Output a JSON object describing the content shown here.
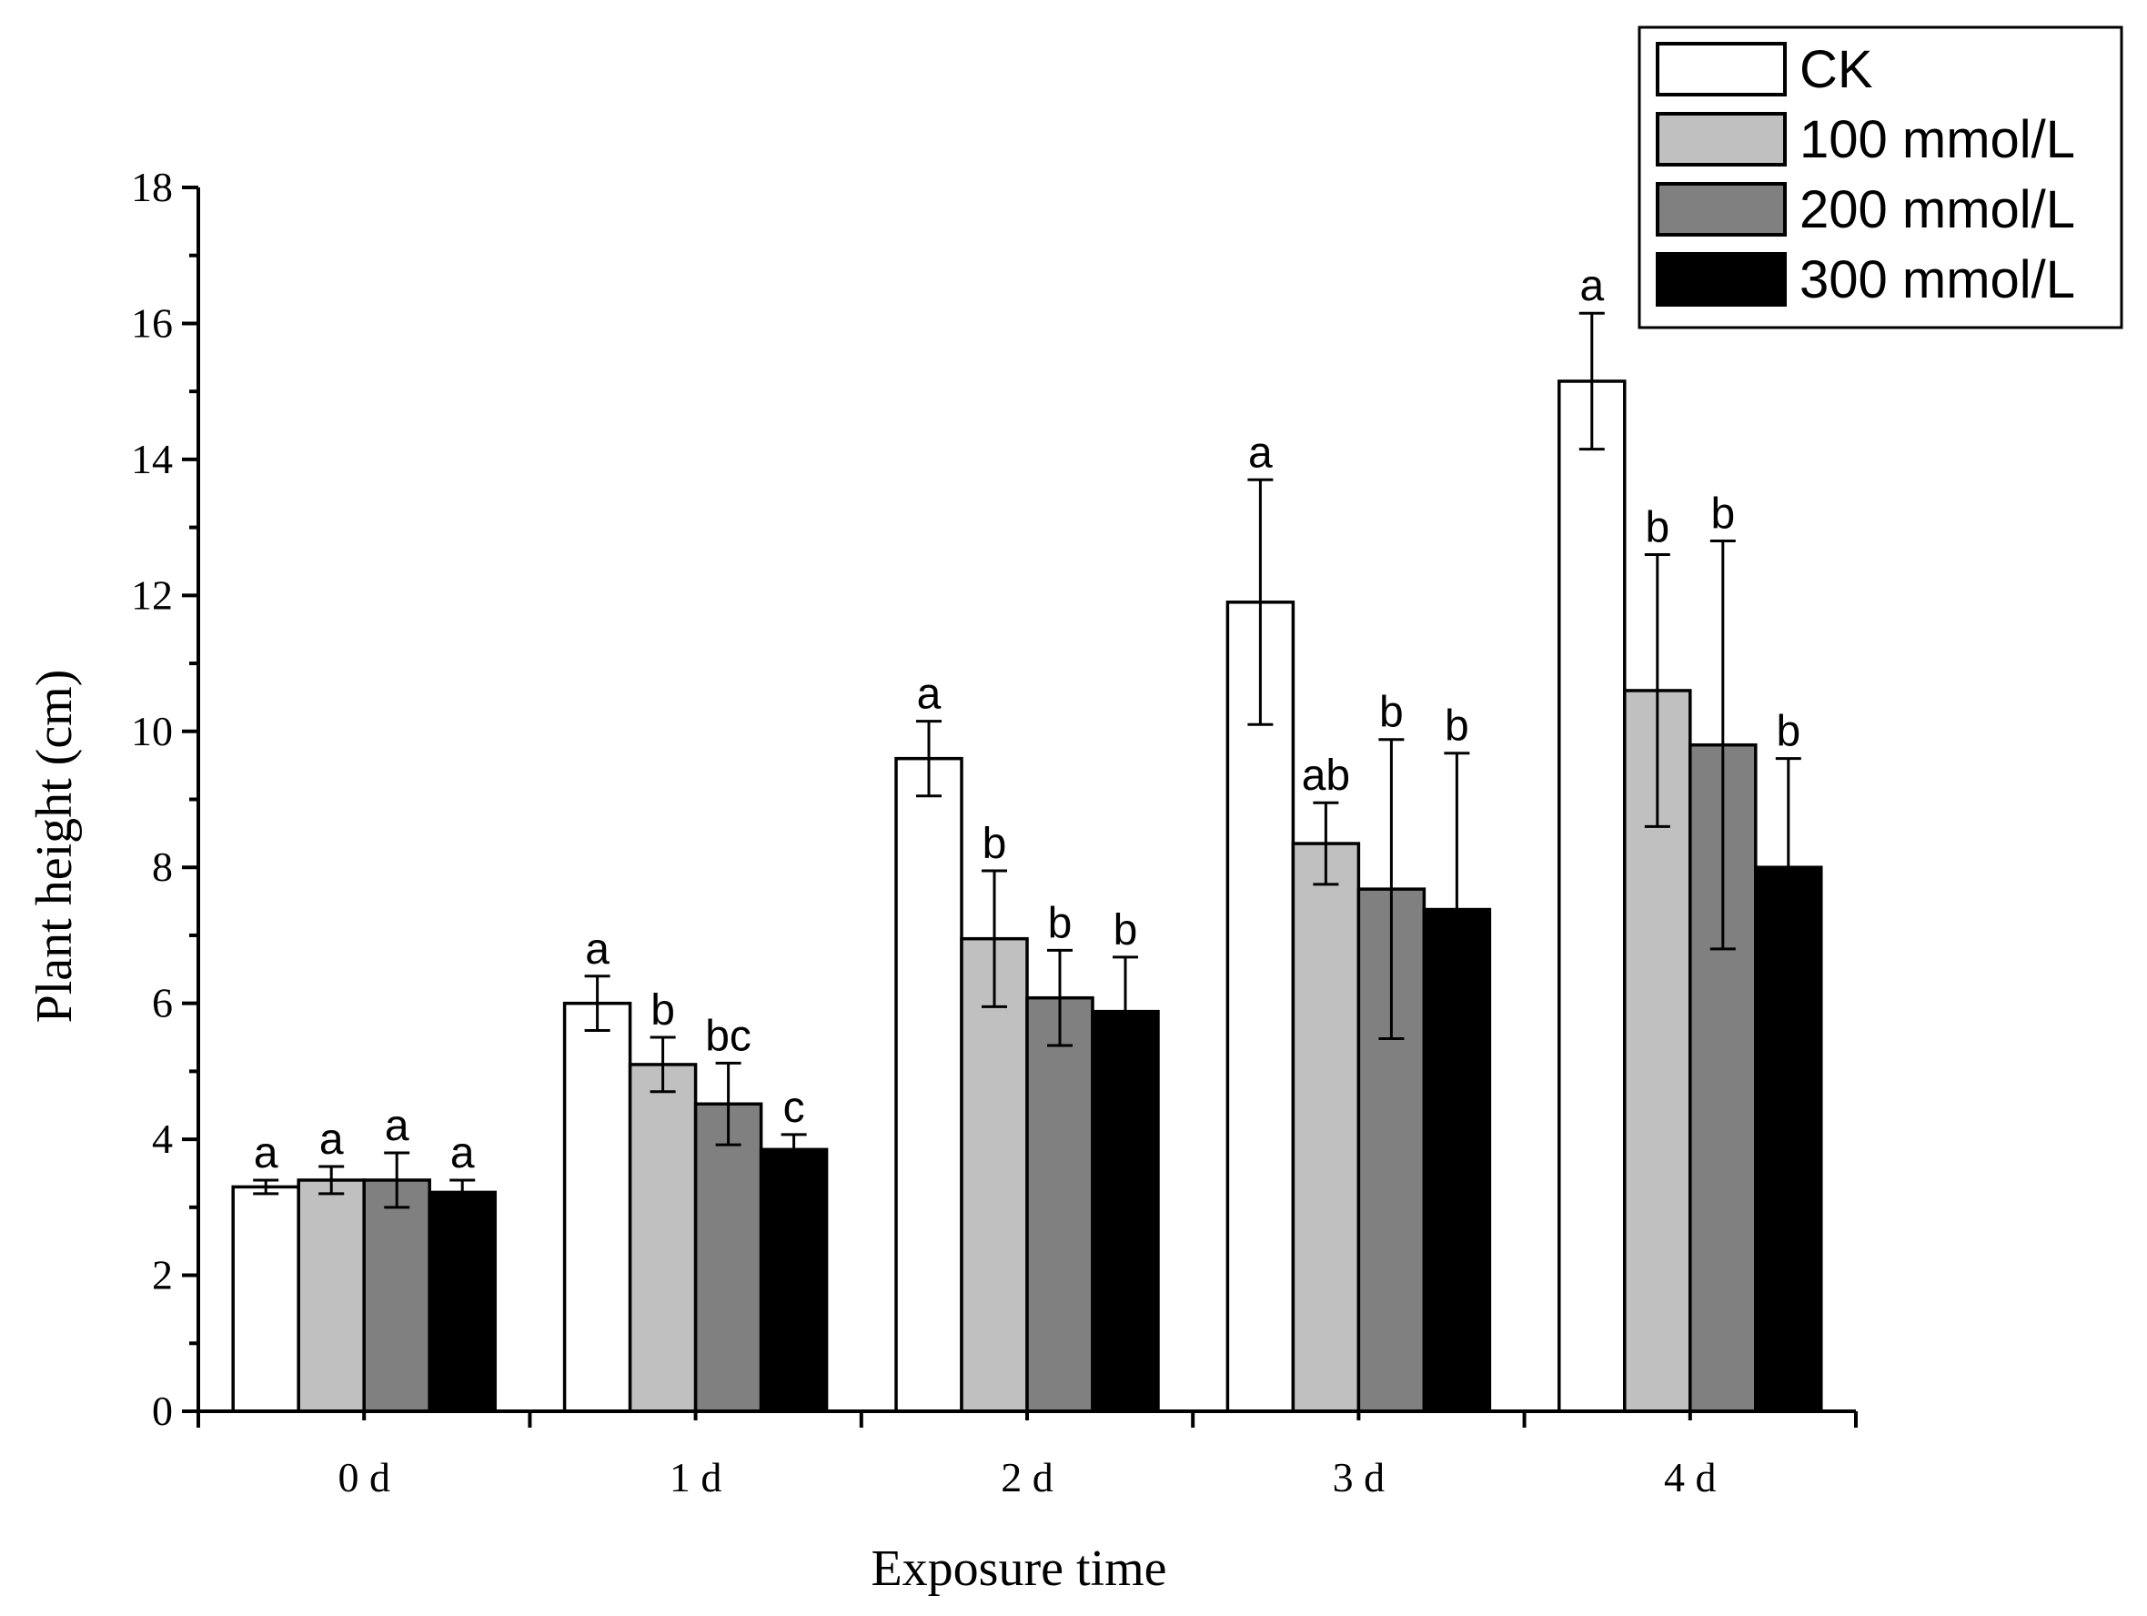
{
  "chart_data": {
    "type": "bar",
    "title": "",
    "xlabel": "Exposure time",
    "ylabel": "Plant height (cm)",
    "ylim": [
      0,
      18
    ],
    "yticks": [
      0,
      2,
      4,
      6,
      8,
      10,
      12,
      14,
      16,
      18
    ],
    "categories": [
      "0 d",
      "1 d",
      "2 d",
      "3 d",
      "4 d"
    ],
    "legend_position": "top-right",
    "series": [
      {
        "name": "CK",
        "color": "#ffffff",
        "values": [
          3.3,
          6.0,
          9.6,
          11.9,
          15.15
        ],
        "errors": [
          0.1,
          0.4,
          0.55,
          1.8,
          1.0
        ],
        "labels": [
          "a",
          "a",
          "a",
          "a",
          "a"
        ]
      },
      {
        "name": "100 mmol/L",
        "color": "#c0c0c0",
        "values": [
          3.4,
          5.1,
          6.95,
          8.35,
          10.6
        ],
        "errors": [
          0.2,
          0.4,
          1.0,
          0.6,
          2.0
        ],
        "labels": [
          "a",
          "b",
          "b",
          "ab",
          "b"
        ]
      },
      {
        "name": "200 mmol/L",
        "color": "#808080",
        "values": [
          3.4,
          4.52,
          6.08,
          7.68,
          9.8
        ],
        "errors": [
          0.4,
          0.6,
          0.7,
          2.2,
          3.0
        ],
        "labels": [
          "a",
          "bc",
          "b",
          "b",
          "b"
        ]
      },
      {
        "name": "300 mmol/L",
        "color": "#000000",
        "values": [
          3.22,
          3.85,
          5.88,
          7.38,
          8.0
        ],
        "errors": [
          0.18,
          0.22,
          0.8,
          2.3,
          1.6
        ],
        "labels": [
          "a",
          "c",
          "b",
          "b",
          "b"
        ]
      }
    ]
  }
}
